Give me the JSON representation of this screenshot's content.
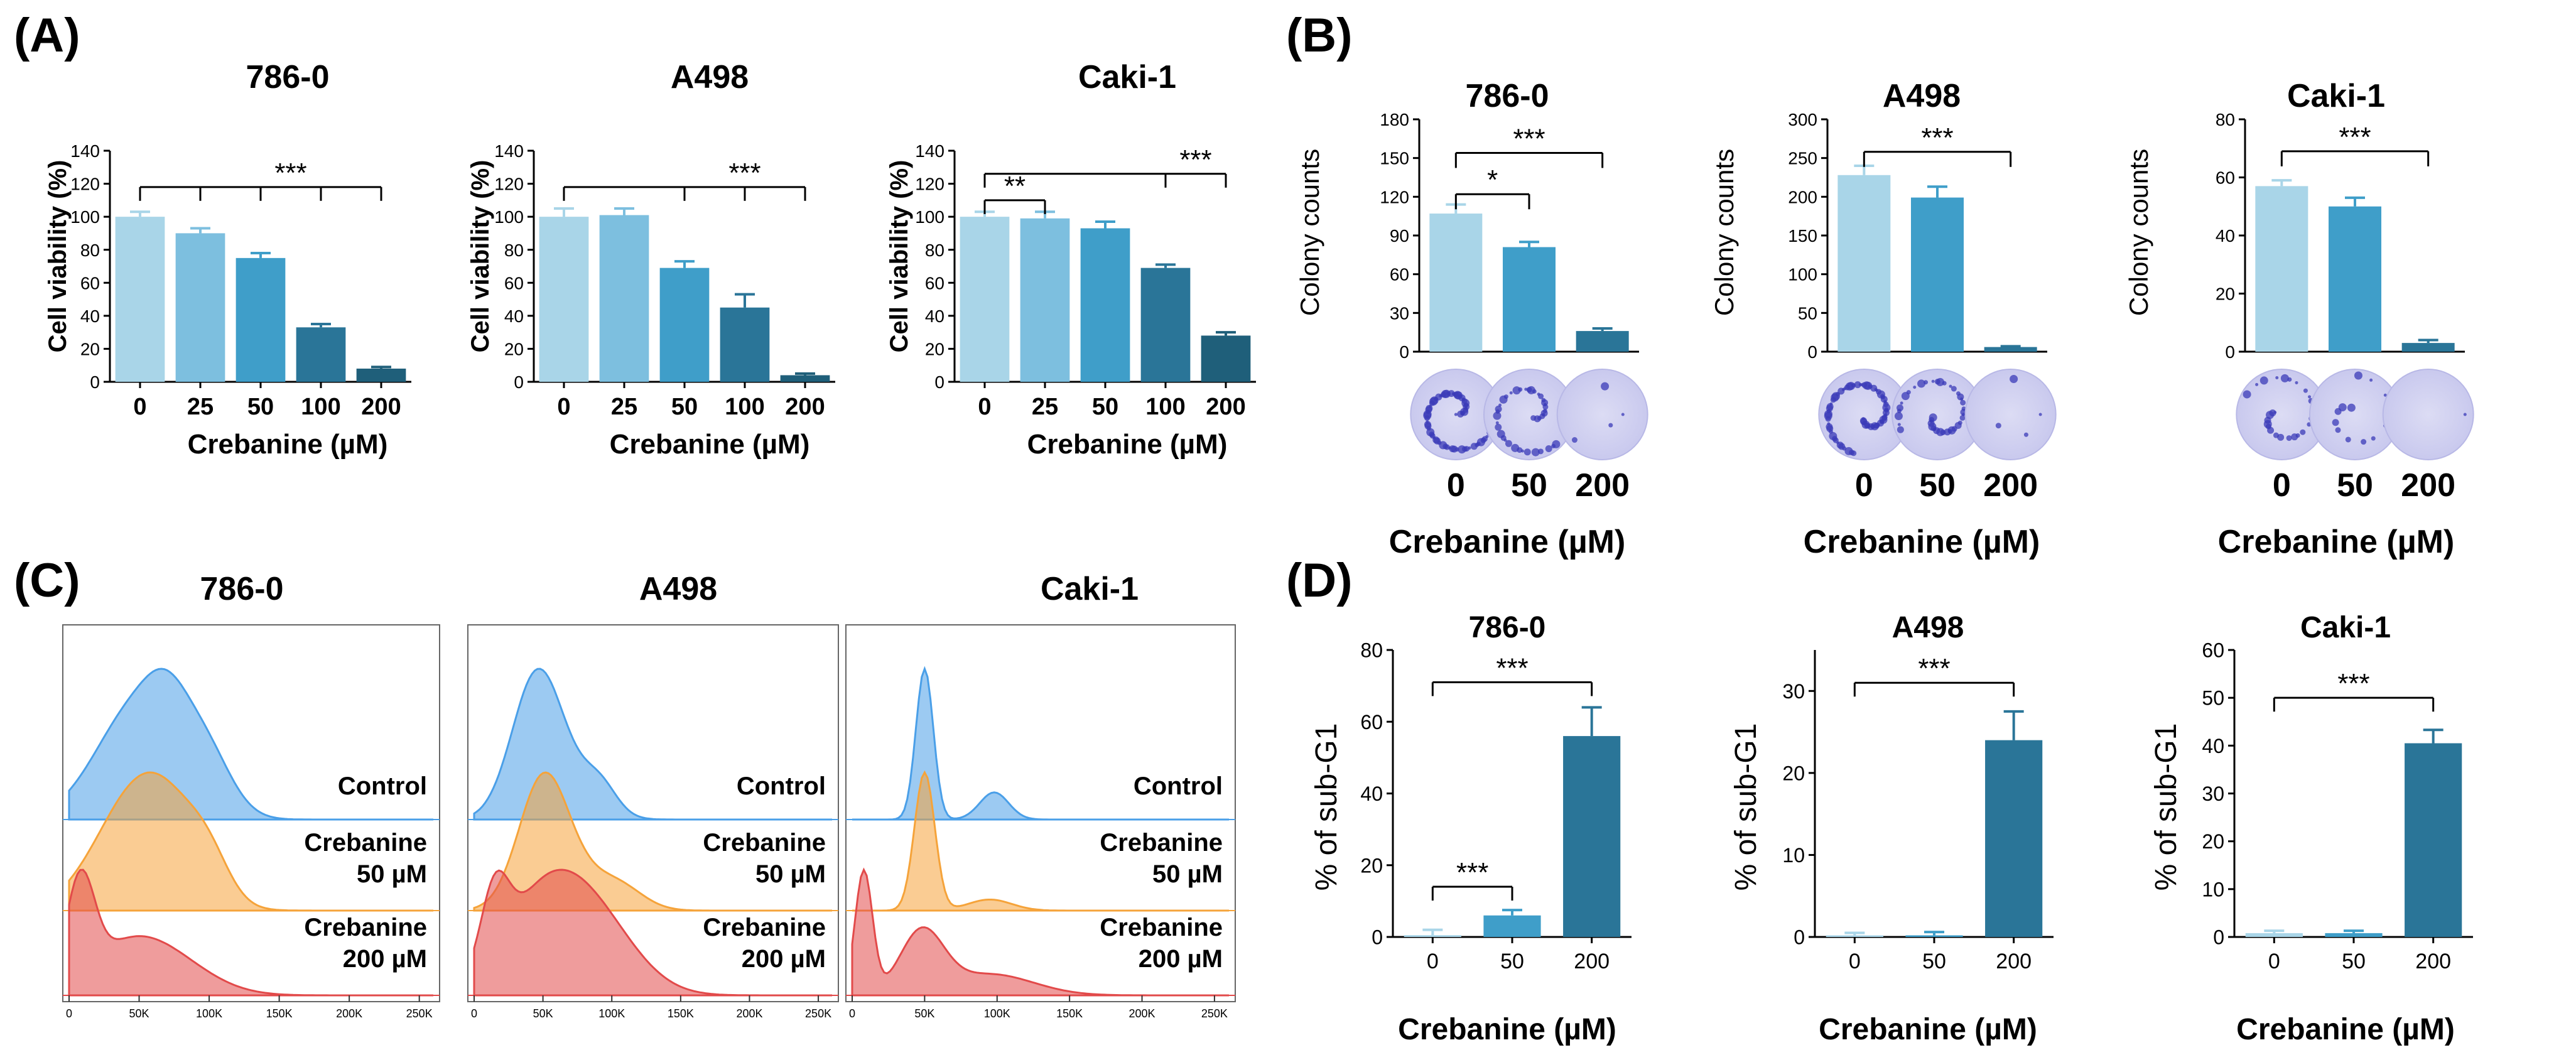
{
  "colors": {
    "bars_a": [
      "#a9d5e8",
      "#7dbfdf",
      "#3f9ec9",
      "#2a7598",
      "#1f5f7a"
    ],
    "bars_bd": [
      "#a9d5e8",
      "#3f9ec9",
      "#2a7598"
    ],
    "axis": "#000000",
    "flow_control": "#4a9fe8",
    "flow_50": "#f5a33a",
    "flow_200": "#e24a4a"
  },
  "panels": {
    "A": {
      "label": "(A)",
      "xlabel": "Crebanine  (µM)",
      "ylabel": "Cell viability (%)"
    },
    "B": {
      "label": "(B)",
      "xlabel": "Crebanine (µM)",
      "ylabel": "Colony counts"
    },
    "C": {
      "label": "(C)",
      "tracks": [
        {
          "line1": "Control",
          "line2": ""
        },
        {
          "line1": "Crebanine",
          "line2": "50 µM"
        },
        {
          "line1": "Crebanine",
          "line2": "200 µM"
        }
      ],
      "x_ticks": [
        "0",
        "50K",
        "100K",
        "150K",
        "200K",
        "250K"
      ]
    },
    "D": {
      "label": "(D)",
      "xlabel": "Crebanine (µM)",
      "ylabel": "% of sub-G1"
    }
  },
  "chart_data": [
    {
      "panel": "A",
      "type": "bar",
      "title": "786-0",
      "categories": [
        "0",
        "25",
        "50",
        "100",
        "200"
      ],
      "values": [
        100,
        90,
        75,
        33,
        8
      ],
      "errors": [
        3,
        3,
        3,
        2,
        1
      ],
      "ylim": [
        0,
        140
      ],
      "yticks": [
        0,
        20,
        40,
        60,
        80,
        100,
        120,
        140
      ],
      "sig": [
        {
          "type": "multi",
          "from": 0,
          "to": [
            1,
            2,
            3,
            4
          ],
          "y": 118,
          "label": "***"
        }
      ]
    },
    {
      "panel": "A",
      "type": "bar",
      "title": "A498",
      "categories": [
        "0",
        "25",
        "50",
        "100",
        "200"
      ],
      "values": [
        100,
        101,
        69,
        45,
        4
      ],
      "errors": [
        5,
        4,
        4,
        8,
        1
      ],
      "ylim": [
        0,
        140
      ],
      "yticks": [
        0,
        20,
        40,
        60,
        80,
        100,
        120,
        140
      ],
      "sig": [
        {
          "type": "multi",
          "from": 0,
          "to": [
            2,
            3,
            4
          ],
          "y": 118,
          "label": "***"
        }
      ]
    },
    {
      "panel": "A",
      "type": "bar",
      "title": "Caki-1",
      "categories": [
        "0",
        "25",
        "50",
        "100",
        "200"
      ],
      "values": [
        100,
        99,
        93,
        69,
        28
      ],
      "errors": [
        3,
        4,
        4,
        2,
        2
      ],
      "ylim": [
        0,
        140
      ],
      "yticks": [
        0,
        20,
        40,
        60,
        80,
        100,
        120,
        140
      ],
      "sig": [
        {
          "type": "multi",
          "from": 0,
          "to": [
            3,
            4
          ],
          "y": 126,
          "label": "***"
        },
        {
          "type": "pair",
          "from": 0,
          "to": 1,
          "y": 110,
          "label": "**"
        }
      ]
    },
    {
      "panel": "B",
      "type": "bar",
      "title": "786-0",
      "categories": [
        "0",
        "50",
        "200"
      ],
      "values": [
        107,
        81,
        16
      ],
      "errors": [
        7,
        4,
        2
      ],
      "ylim": [
        0,
        180
      ],
      "yticks": [
        0,
        30,
        60,
        90,
        120,
        150,
        180
      ],
      "sig": [
        {
          "type": "pair",
          "from": 0,
          "to": 2,
          "y": 154,
          "label": "***"
        },
        {
          "type": "pair",
          "from": 0,
          "to": 1,
          "y": 122,
          "label": "*"
        }
      ]
    },
    {
      "panel": "B",
      "type": "bar",
      "title": "A498",
      "categories": [
        "0",
        "50",
        "200"
      ],
      "values": [
        228,
        199,
        6
      ],
      "errors": [
        12,
        14,
        1
      ],
      "ylim": [
        0,
        300
      ],
      "yticks": [
        0,
        50,
        100,
        150,
        200,
        250,
        300
      ],
      "sig": [
        {
          "type": "pair",
          "from": 0,
          "to": 2,
          "y": 258,
          "label": "***"
        }
      ]
    },
    {
      "panel": "B",
      "type": "bar",
      "title": "Caki-1",
      "categories": [
        "0",
        "50",
        "200"
      ],
      "values": [
        57,
        50,
        3
      ],
      "errors": [
        2,
        3,
        1
      ],
      "ylim": [
        0,
        80
      ],
      "yticks": [
        0,
        20,
        40,
        60,
        80
      ],
      "sig": [
        {
          "type": "pair",
          "from": 0,
          "to": 2,
          "y": 69,
          "label": "***"
        }
      ]
    },
    {
      "panel": "C",
      "type": "area",
      "title": "786-0",
      "series": [
        {
          "name": "Control",
          "peaks": [
            [
              50,
              30,
              1.0
            ],
            [
              70,
              15,
              0.35
            ],
            [
              98,
              18,
              0.45
            ]
          ]
        },
        {
          "name": "Crebanine 50 µM",
          "peaks": [
            [
              50,
              30,
              1.0
            ],
            [
              75,
              20,
              0.25
            ],
            [
              100,
              15,
              0.3
            ]
          ]
        },
        {
          "name": "Crebanine 200 µM",
          "peaks": [
            [
              8,
              10,
              1.0
            ],
            [
              40,
              30,
              0.45
            ],
            [
              75,
              30,
              0.25
            ]
          ]
        }
      ]
    },
    {
      "panel": "C",
      "type": "area",
      "title": "A498",
      "series": [
        {
          "name": "Control",
          "peaks": [
            [
              45,
              18,
              1.0
            ],
            [
              70,
              20,
              0.22
            ],
            [
              92,
              12,
              0.18
            ]
          ]
        },
        {
          "name": "Crebanine 50 µM",
          "peaks": [
            [
              50,
              18,
              1.0
            ],
            [
              75,
              20,
              0.18
            ],
            [
              105,
              18,
              0.18
            ]
          ]
        },
        {
          "name": "Crebanine 200 µM",
          "peaks": [
            [
              15,
              10,
              0.35
            ],
            [
              50,
              30,
              0.45
            ],
            [
              90,
              30,
              0.3
            ]
          ]
        }
      ]
    },
    {
      "panel": "C",
      "type": "area",
      "title": "Caki-1",
      "series": [
        {
          "name": "Control",
          "peaks": [
            [
              50,
              6,
              1.0
            ],
            [
              98,
              10,
              0.18
            ]
          ]
        },
        {
          "name": "Crebanine 50 µM",
          "peaks": [
            [
              50,
              7,
              1.0
            ],
            [
              95,
              15,
              0.08
            ]
          ]
        },
        {
          "name": "Crebanine 200 µM",
          "peaks": [
            [
              8,
              6,
              0.7
            ],
            [
              48,
              15,
              0.35
            ],
            [
              95,
              30,
              0.12
            ]
          ]
        }
      ]
    },
    {
      "panel": "D",
      "type": "bar",
      "title": "786-0",
      "categories": [
        "0",
        "50",
        "200"
      ],
      "values": [
        0.5,
        6,
        56
      ],
      "errors": [
        1.5,
        1.5,
        8
      ],
      "ylim": [
        0,
        80
      ],
      "yticks": [
        0,
        20,
        40,
        60,
        80
      ],
      "sig": [
        {
          "type": "pair",
          "from": 0,
          "to": 2,
          "y": 71,
          "label": "***"
        },
        {
          "type": "pair",
          "from": 0,
          "to": 1,
          "y": 14,
          "label": "***"
        }
      ]
    },
    {
      "panel": "D",
      "type": "bar",
      "title": "A498",
      "categories": [
        "0",
        "50",
        "200"
      ],
      "values": [
        0.2,
        0.2,
        24
      ],
      "errors": [
        0.3,
        0.4,
        3.5
      ],
      "ylim": [
        0,
        35
      ],
      "yticks": [
        0,
        10,
        20,
        30
      ],
      "sig": [
        {
          "type": "pair",
          "from": 0,
          "to": 2,
          "y": 31,
          "label": "***"
        }
      ]
    },
    {
      "panel": "D",
      "type": "bar",
      "title": "Caki-1",
      "categories": [
        "0",
        "50",
        "200"
      ],
      "values": [
        0.8,
        0.8,
        40.5
      ],
      "errors": [
        0.5,
        0.5,
        2.8
      ],
      "ylim": [
        0,
        60
      ],
      "yticks": [
        0,
        10,
        20,
        30,
        40,
        50,
        60
      ],
      "sig": [
        {
          "type": "pair",
          "from": 0,
          "to": 2,
          "y": 50,
          "label": "***"
        }
      ]
    }
  ]
}
